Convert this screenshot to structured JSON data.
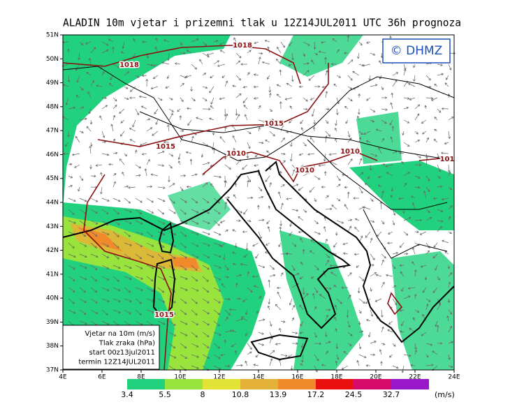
{
  "header": {
    "title": "ALADIN 10m vjetar i prizemni tlak u 12Z14JUL2011 UTC 36h prognoza"
  },
  "map": {
    "lat_labels": [
      "51N",
      "50N",
      "49N",
      "48N",
      "47N",
      "46N",
      "45N",
      "44N",
      "43N",
      "42N",
      "41N",
      "40N",
      "39N",
      "38N",
      "37N"
    ],
    "lon_labels": [
      "4E",
      "6E",
      "8E",
      "10E",
      "12E",
      "14E",
      "16E",
      "18E",
      "20E",
      "22E",
      "24E"
    ],
    "isobar_labels": [
      "1018",
      "1018",
      "1015",
      "1015",
      "1010",
      "1010",
      "1010",
      "1015",
      "101"
    ]
  },
  "logo": "© DHMZ",
  "info_box": [
    "Vjetar na 10m (m/s)",
    "Tlak zraka (hPa)",
    "start 00z13jul2011",
    "termin 12Z14JUL2011"
  ],
  "colorbar": {
    "colors": [
      "#21d17d",
      "#98e33c",
      "#e3e336",
      "#e3b236",
      "#f08a2b",
      "#ea1010",
      "#d60a6b",
      "#9a17c9"
    ],
    "labels": [
      "3.4",
      "5.5",
      "8",
      "10.8",
      "13.9",
      "17.2",
      "24.5",
      "32.7"
    ],
    "unit": "(m/s)"
  }
}
